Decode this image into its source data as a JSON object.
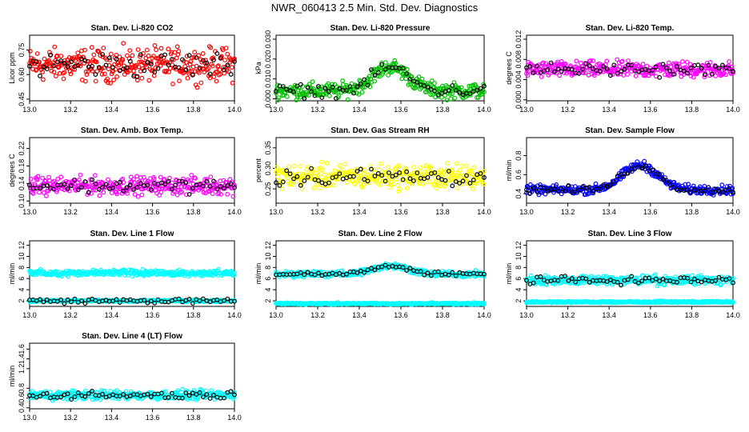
{
  "page_title": "NWR_060413  2.5 Min. Std. Dev. Diagnostics",
  "colors": {
    "black": "#000000",
    "red": "#ff0000",
    "green": "#00c000",
    "magenta": "#ff00ff",
    "yellow": "#ffff00",
    "blue": "#0000ff",
    "cyan": "#00ffff"
  },
  "chart_data": [
    {
      "type": "scatter",
      "title": "Stan. Dev. Li-820 CO2",
      "ylabel": "Licor ppm",
      "color": "red",
      "xlim": [
        13.0,
        14.0
      ],
      "ylim": [
        0.44,
        0.84
      ],
      "yticks": [
        "0.45",
        "0.60",
        "0.75"
      ],
      "yticks_num": [
        0.45,
        0.6,
        0.75
      ],
      "xticks": [
        "13.0",
        "13.2",
        "13.4",
        "13.6",
        "13.8",
        "14.0"
      ],
      "gen": {
        "base": 0.66,
        "noise": 0.075,
        "bump": 0,
        "black_offset": 0
      }
    },
    {
      "type": "scatter",
      "title": "Stan. Dev. Li-820 Pressure",
      "ylabel": "kPa",
      "color": "green",
      "xlim": [
        13.0,
        14.0
      ],
      "ylim": [
        -0.001,
        0.032
      ],
      "yticks": [
        "0.000",
        "0.010",
        "0.020",
        "0.030"
      ],
      "yticks_num": [
        0.0,
        0.01,
        0.02,
        0.03
      ],
      "xticks": [
        "13.0",
        "13.2",
        "13.4",
        "13.6",
        "13.8",
        "14.0"
      ],
      "gen": {
        "base": 0.004,
        "noise": 0.003,
        "bump": 0.012,
        "black_offset": 0
      }
    },
    {
      "type": "scatter",
      "title": "Stan. Dev. Li-820 Temp.",
      "ylabel": "degrees C",
      "color": "magenta",
      "xlim": [
        13.0,
        14.0
      ],
      "ylim": [
        -0.0002,
        0.0128
      ],
      "yticks": [
        "0.000",
        "0.004",
        "0.008",
        "0.012"
      ],
      "yticks_num": [
        0.0,
        0.004,
        0.008,
        0.012
      ],
      "xticks": [
        "13.0",
        "13.2",
        "13.4",
        "13.6",
        "13.8",
        "14.0"
      ],
      "gen": {
        "base": 0.006,
        "noise": 0.0012,
        "bump": 0,
        "black_offset": 0
      }
    },
    {
      "type": "scatter",
      "title": "Stan. Dev. Amb. Box Temp.",
      "ylabel": "degrees C",
      "color": "magenta",
      "xlim": [
        13.0,
        14.0
      ],
      "ylim": [
        0.095,
        0.245
      ],
      "yticks": [
        "0.10",
        "0.14",
        "0.18",
        "0.22"
      ],
      "yticks_num": [
        0.1,
        0.14,
        0.18,
        0.22
      ],
      "xticks": [
        "13.0",
        "13.2",
        "13.4",
        "13.6",
        "13.8",
        "14.0"
      ],
      "gen": {
        "base": 0.135,
        "noise": 0.015,
        "bump": 0,
        "black_offset": 0
      }
    },
    {
      "type": "scatter",
      "title": "Stan. Dev. Gas Stream RH",
      "ylabel": "percent",
      "color": "yellow",
      "xlim": [
        13.0,
        14.0
      ],
      "ylim": [
        0.215,
        0.375
      ],
      "yticks": [
        "0.25",
        "0.30",
        "0.35"
      ],
      "yticks_num": [
        0.25,
        0.3,
        0.35
      ],
      "xticks": [
        "13.0",
        "13.2",
        "13.4",
        "13.6",
        "13.8",
        "14.0"
      ],
      "gen": {
        "base": 0.28,
        "noise": 0.022,
        "bump": 0,
        "black_offset": 0
      }
    },
    {
      "type": "scatter",
      "title": "Stan. Dev. Sample Flow",
      "ylabel": "ml/min",
      "color": "blue",
      "xlim": [
        13.0,
        14.0
      ],
      "ylim": [
        0.3,
        0.99
      ],
      "yticks": [
        "0.4",
        "0.6",
        "0.8"
      ],
      "yticks_num": [
        0.4,
        0.6,
        0.8
      ],
      "xticks": [
        "13.0",
        "13.2",
        "13.4",
        "13.6",
        "13.8",
        "14.0"
      ],
      "gen": {
        "base": 0.44,
        "noise": 0.035,
        "bump": 0.26,
        "black_offset": 0
      }
    },
    {
      "type": "scatter",
      "title": "Stan. Dev. Line 1 Flow",
      "ylabel": "ml/min",
      "color": "cyan",
      "xlim": [
        13.0,
        14.0
      ],
      "ylim": [
        1,
        12.8
      ],
      "yticks": [
        "2",
        "4",
        "6",
        "8",
        "10",
        "12"
      ],
      "yticks_num": [
        2,
        4,
        6,
        8,
        10,
        12
      ],
      "xticks": [
        "13.0",
        "13.2",
        "13.4",
        "13.6",
        "13.8",
        "14.0"
      ],
      "gen": {
        "base": 7.0,
        "noise": 0.4,
        "bump": 0,
        "second": 2.0,
        "black_offset": -5.0
      }
    },
    {
      "type": "scatter",
      "title": "Stan. Dev. Line 2 Flow",
      "ylabel": "ml/min",
      "color": "cyan",
      "xlim": [
        13.0,
        14.0
      ],
      "ylim": [
        1,
        12.8
      ],
      "yticks": [
        "2",
        "4",
        "6",
        "8",
        "10",
        "12"
      ],
      "yticks_num": [
        2,
        4,
        6,
        8,
        10,
        12
      ],
      "xticks": [
        "13.0",
        "13.2",
        "13.4",
        "13.6",
        "13.8",
        "14.0"
      ],
      "gen": {
        "base": 6.8,
        "noise": 0.4,
        "bump": 1.5,
        "second": 1.5,
        "black_offset": 0
      }
    },
    {
      "type": "scatter",
      "title": "Stan. Dev. Line 3 Flow",
      "ylabel": "ml/min",
      "color": "cyan",
      "xlim": [
        13.0,
        14.0
      ],
      "ylim": [
        1,
        12.8
      ],
      "yticks": [
        "2",
        "4",
        "6",
        "8",
        "10",
        "12"
      ],
      "yticks_num": [
        2,
        4,
        6,
        8,
        10,
        12
      ],
      "xticks": [
        "13.0",
        "13.2",
        "13.4",
        "13.6",
        "13.8",
        "14.0"
      ],
      "gen": {
        "base": 5.7,
        "noise": 0.6,
        "bump": 0,
        "second": 1.8,
        "black_offset": 0
      }
    },
    {
      "type": "scatter",
      "title": "Stan. Dev. Line 4 (LT) Flow",
      "ylabel": "ml/min",
      "color": "cyan",
      "xlim": [
        13.0,
        14.0
      ],
      "ylim": [
        0.38,
        1.72
      ],
      "yticks": [
        "0.4",
        "0.6",
        "0.8",
        "1.2",
        "1.4",
        "1.6"
      ],
      "yticks_num": [
        0.4,
        0.6,
        0.8,
        1.2,
        1.4,
        1.6
      ],
      "xticks": [
        "13.0",
        "13.2",
        "13.4",
        "13.6",
        "13.8",
        "14.0"
      ],
      "gen": {
        "base": 0.66,
        "noise": 0.07,
        "bump": 0,
        "black_offset": 0
      }
    }
  ]
}
